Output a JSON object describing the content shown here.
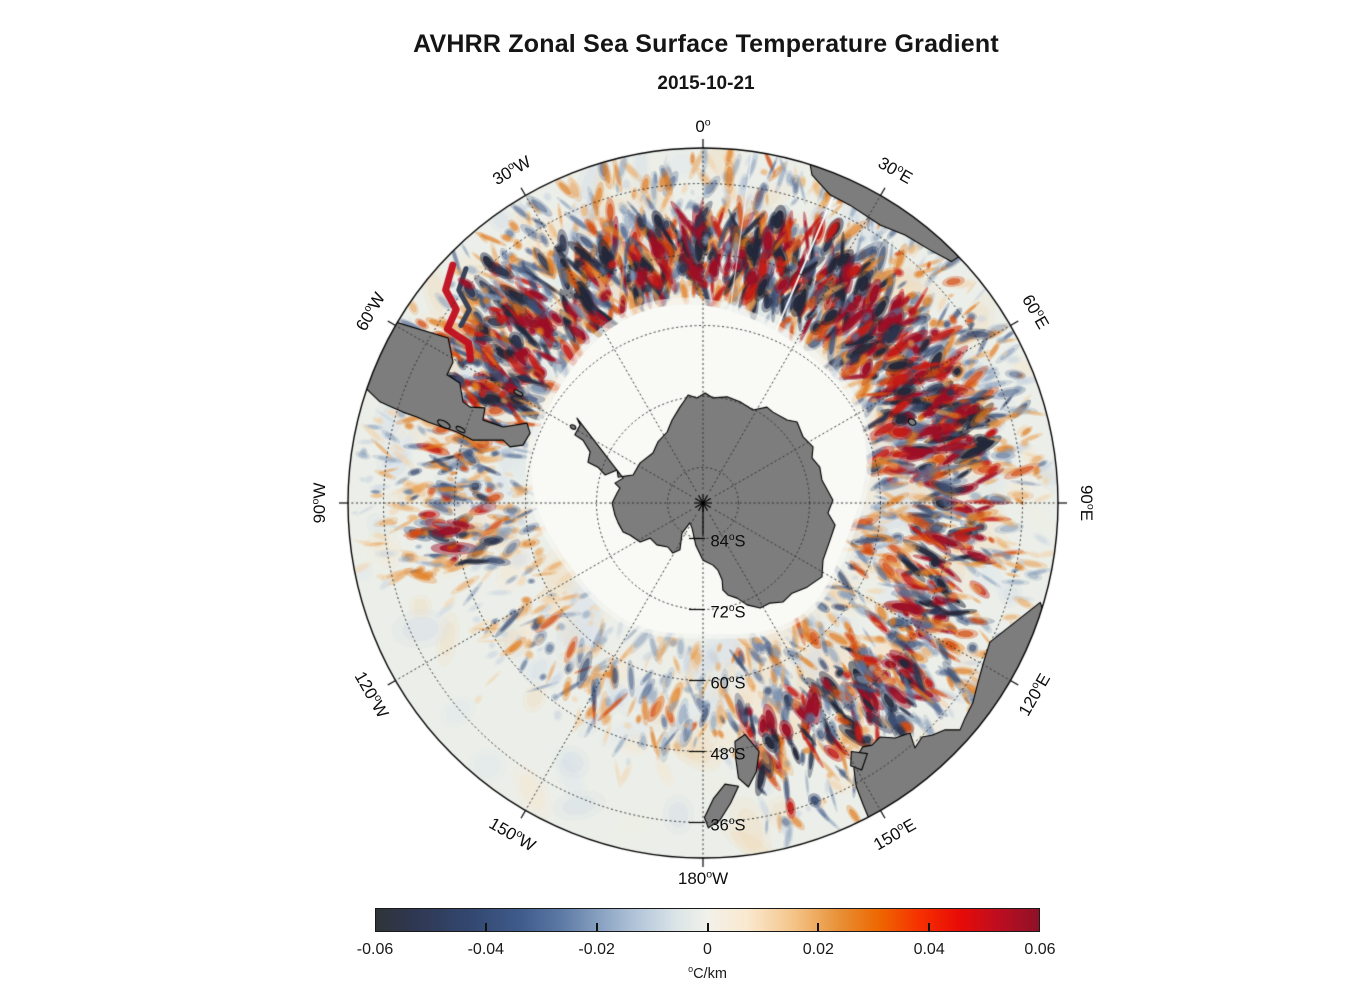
{
  "title": {
    "text": "AVHRR Zonal Sea Surface Temperature Gradient",
    "subtitle": "2015-10-21"
  },
  "map": {
    "longitude_labels": [
      {
        "text": "0°",
        "az": 0
      },
      {
        "text": "30°E",
        "az": 30
      },
      {
        "text": "60°E",
        "az": 60
      },
      {
        "text": "90°E",
        "az": 90
      },
      {
        "text": "120°E",
        "az": 120
      },
      {
        "text": "150°E",
        "az": 150
      },
      {
        "text": "180°W",
        "az": 180
      },
      {
        "text": "150°W",
        "az": 210
      },
      {
        "text": "120°W",
        "az": 240
      },
      {
        "text": "90°W",
        "az": 270
      },
      {
        "text": "60°W",
        "az": 300
      },
      {
        "text": "30°W",
        "az": 330
      }
    ],
    "latitude_labels": [
      {
        "text": "84°S",
        "lat": 84
      },
      {
        "text": "72°S",
        "lat": 72
      },
      {
        "text": "60°S",
        "lat": 60
      },
      {
        "text": "48°S",
        "lat": 48
      },
      {
        "text": "36°S",
        "lat": 36
      }
    ],
    "colors": {
      "ocean": "#ecefe9",
      "ice": "#f9faf6",
      "land": "#7d7d7d",
      "coast": "#000000",
      "grid": "#333333",
      "neg": [
        "#c6d2e0",
        "#8ba0bb",
        "#5a7096",
        "#3c4f74",
        "#2c3550",
        "#23283a"
      ],
      "pos": [
        "#f3d2a8",
        "#eaa55c",
        "#e07a1d",
        "#d44a10",
        "#c31b16",
        "#9c0f26"
      ],
      "mottle": [
        "#f6e3c9",
        "#f3d9b8",
        "#dde6ee",
        "#cfdce8",
        "#eef0e4"
      ]
    },
    "land_regions": [
      {
        "name": "antarctica",
        "points": [
          [
            -0.355,
            -0.239
          ],
          [
            -0.346,
            -0.22
          ],
          [
            -0.361,
            -0.192
          ],
          [
            -0.338,
            -0.177
          ],
          [
            -0.318,
            -0.144
          ],
          [
            -0.324,
            -0.115
          ],
          [
            -0.296,
            -0.101
          ],
          [
            -0.276,
            -0.079
          ],
          [
            -0.242,
            -0.093
          ],
          [
            -0.239,
            -0.073
          ],
          [
            -0.197,
            -0.079
          ],
          [
            -0.177,
            -0.113
          ],
          [
            -0.141,
            -0.141
          ],
          [
            -0.127,
            -0.172
          ],
          [
            -0.101,
            -0.2
          ],
          [
            -0.087,
            -0.234
          ],
          [
            -0.065,
            -0.27
          ],
          [
            -0.051,
            -0.29
          ],
          [
            -0.042,
            -0.304
          ],
          [
            -0.017,
            -0.296
          ],
          [
            0.006,
            -0.31
          ],
          [
            0.028,
            -0.296
          ],
          [
            0.068,
            -0.299
          ],
          [
            0.104,
            -0.285
          ],
          [
            0.141,
            -0.262
          ],
          [
            0.18,
            -0.27
          ],
          [
            0.197,
            -0.256
          ],
          [
            0.237,
            -0.234
          ],
          [
            0.265,
            -0.228
          ],
          [
            0.282,
            -0.186
          ],
          [
            0.31,
            -0.158
          ],
          [
            0.307,
            -0.127
          ],
          [
            0.329,
            -0.101
          ],
          [
            0.335,
            -0.065
          ],
          [
            0.366,
            -0.008
          ],
          [
            0.352,
            0.028
          ],
          [
            0.372,
            0.062
          ],
          [
            0.358,
            0.104
          ],
          [
            0.338,
            0.161
          ],
          [
            0.335,
            0.208
          ],
          [
            0.293,
            0.237
          ],
          [
            0.251,
            0.254
          ],
          [
            0.225,
            0.279
          ],
          [
            0.189,
            0.282
          ],
          [
            0.161,
            0.296
          ],
          [
            0.124,
            0.287
          ],
          [
            0.096,
            0.268
          ],
          [
            0.07,
            0.259
          ],
          [
            0.056,
            0.245
          ],
          [
            0.054,
            0.217
          ],
          [
            0.042,
            0.189
          ],
          [
            0.028,
            0.175
          ],
          [
            0.0,
            0.161
          ],
          [
            -0.02,
            0.12
          ],
          [
            -0.031,
            0.07
          ],
          [
            -0.037,
            0.056
          ],
          [
            -0.059,
            0.085
          ],
          [
            -0.065,
            0.132
          ],
          [
            -0.085,
            0.141
          ],
          [
            -0.099,
            0.124
          ],
          [
            -0.13,
            0.118
          ],
          [
            -0.149,
            0.099
          ],
          [
            -0.177,
            0.11
          ],
          [
            -0.206,
            0.09
          ],
          [
            -0.225,
            0.082
          ],
          [
            -0.239,
            0.056
          ],
          [
            -0.248,
            0.034
          ],
          [
            -0.256,
            0.0
          ],
          [
            -0.242,
            -0.028
          ],
          [
            -0.234,
            -0.042
          ],
          [
            -0.248,
            -0.056
          ],
          [
            -0.225,
            -0.07
          ]
        ]
      },
      {
        "name": "south-america",
        "points": [
          [
            -0.9,
            -0.52
          ],
          [
            -0.718,
            -0.465
          ],
          [
            -0.704,
            -0.397
          ],
          [
            -0.721,
            -0.361
          ],
          [
            -0.685,
            -0.338
          ],
          [
            -0.676,
            -0.285
          ],
          [
            -0.656,
            -0.27
          ],
          [
            -0.614,
            -0.268
          ],
          [
            -0.62,
            -0.234
          ],
          [
            -0.594,
            -0.225
          ],
          [
            -0.563,
            -0.214
          ],
          [
            -0.496,
            -0.225
          ],
          [
            -0.487,
            -0.197
          ],
          [
            -0.507,
            -0.163
          ],
          [
            -0.544,
            -0.158
          ],
          [
            -0.563,
            -0.177
          ],
          [
            -0.648,
            -0.177
          ],
          [
            -0.693,
            -0.2
          ],
          [
            -0.735,
            -0.214
          ],
          [
            -0.775,
            -0.228
          ],
          [
            -0.806,
            -0.242
          ],
          [
            -0.845,
            -0.256
          ],
          [
            -0.876,
            -0.27
          ],
          [
            -0.91,
            -0.285
          ],
          [
            -1.05,
            -0.42
          ]
        ]
      },
      {
        "name": "africa",
        "points": [
          [
            0.28,
            -1.08
          ],
          [
            0.307,
            -0.924
          ],
          [
            0.358,
            -0.868
          ],
          [
            0.414,
            -0.839
          ],
          [
            0.499,
            -0.783
          ],
          [
            0.569,
            -0.755
          ],
          [
            0.639,
            -0.713
          ],
          [
            0.7,
            -0.68
          ],
          [
            0.82,
            -0.76
          ],
          [
            0.52,
            -1.1
          ]
        ]
      },
      {
        "name": "australia",
        "points": [
          [
            0.95,
            0.28
          ],
          [
            0.808,
            0.392
          ],
          [
            0.79,
            0.45
          ],
          [
            0.775,
            0.504
          ],
          [
            0.76,
            0.563
          ],
          [
            0.738,
            0.606
          ],
          [
            0.724,
            0.639
          ],
          [
            0.682,
            0.639
          ],
          [
            0.645,
            0.654
          ],
          [
            0.617,
            0.659
          ],
          [
            0.597,
            0.69
          ],
          [
            0.583,
            0.648
          ],
          [
            0.541,
            0.662
          ],
          [
            0.499,
            0.659
          ],
          [
            0.476,
            0.682
          ],
          [
            0.45,
            0.687
          ],
          [
            0.436,
            0.71
          ],
          [
            0.425,
            0.748
          ],
          [
            0.432,
            0.8
          ],
          [
            0.452,
            0.852
          ],
          [
            0.472,
            0.9
          ],
          [
            0.56,
            1.08
          ],
          [
            1.15,
            0.85
          ]
        ]
      },
      {
        "name": "tasmania",
        "points": [
          [
            0.418,
            0.7
          ],
          [
            0.463,
            0.706
          ],
          [
            0.447,
            0.752
          ],
          [
            0.416,
            0.74
          ]
        ]
      },
      {
        "name": "new-zealand-north-island",
        "points": [
          [
            0.118,
            0.652
          ],
          [
            0.158,
            0.7
          ],
          [
            0.15,
            0.758
          ],
          [
            0.128,
            0.8
          ],
          [
            0.1,
            0.775
          ],
          [
            0.092,
            0.718
          ],
          [
            0.09,
            0.672
          ]
        ]
      },
      {
        "name": "new-zealand-south-island",
        "points": [
          [
            0.1,
            0.798
          ],
          [
            0.078,
            0.845
          ],
          [
            0.048,
            0.893
          ],
          [
            0.015,
            0.915
          ],
          [
            0.004,
            0.886
          ],
          [
            0.03,
            0.832
          ],
          [
            0.062,
            0.792
          ]
        ]
      }
    ],
    "islands": [
      [
        -0.52,
        -0.31,
        5,
        2
      ],
      [
        -0.73,
        -0.222,
        7,
        3
      ],
      [
        -0.683,
        -0.207,
        5,
        2
      ],
      [
        0.589,
        -0.228,
        4,
        3
      ],
      [
        -0.366,
        -0.214,
        3,
        2
      ]
    ]
  },
  "colorbar": {
    "tick_labels": [
      "-0.06",
      "-0.04",
      "-0.02",
      "0",
      "0.02",
      "0.04",
      "0.06"
    ],
    "tick_values": [
      -0.06,
      -0.04,
      -0.02,
      0,
      0.02,
      0.04,
      0.06
    ],
    "unit": "°C/km",
    "gradient": [
      [
        0,
        "#30333a"
      ],
      [
        0.06,
        "#2f3852"
      ],
      [
        0.14,
        "#32476f"
      ],
      [
        0.22,
        "#3f5c8c"
      ],
      [
        0.28,
        "#5d7aa6"
      ],
      [
        0.34,
        "#8aa3c2"
      ],
      [
        0.4,
        "#b8c9dc"
      ],
      [
        0.45,
        "#d9e3e7"
      ],
      [
        0.5,
        "#f2f1ea"
      ],
      [
        0.56,
        "#f9e9cf"
      ],
      [
        0.63,
        "#f4c488"
      ],
      [
        0.7,
        "#e88f35"
      ],
      [
        0.76,
        "#ee6600"
      ],
      [
        0.82,
        "#f63000"
      ],
      [
        0.88,
        "#e80b07"
      ],
      [
        0.94,
        "#bc0e20"
      ],
      [
        1,
        "#8e1127"
      ]
    ]
  },
  "chart_data": {
    "type": "heatmap",
    "title": "AVHRR Zonal Sea Surface Temperature Gradient",
    "subtitle": "2015-10-21",
    "variable": "zonal sea surface temperature gradient",
    "units": "°C/km",
    "projection": "south-polar azimuthal view centered on 90°S, outer boundary near 30°S",
    "value_range": [
      -0.06,
      0.06
    ],
    "colorbar_ticks": [
      -0.06,
      -0.04,
      -0.02,
      0,
      0.02,
      0.04,
      0.06
    ],
    "colorbar_orientation": "horizontal-bottom",
    "latitude_rings_deg_S": [
      84,
      72,
      60,
      48,
      36
    ],
    "longitude_spokes": [
      "0°",
      "30°E",
      "60°E",
      "90°E",
      "120°E",
      "150°E",
      "180°W",
      "150°W",
      "120°W",
      "90°W",
      "60°W",
      "30°W"
    ],
    "grid": "dotted graticule, 12° latitude rings, 30° longitude spokes",
    "land_mask": [
      "Antarctica",
      "southern South America",
      "southern Africa",
      "Australia",
      "Tasmania",
      "New Zealand",
      "Falkland Islands",
      "South Georgia",
      "Kerguelen"
    ],
    "qualitative_field": [
      {
        "region": "Agulhas Return Current 10–80°E, 38–55°S",
        "amplitude": "very strong alternating ±0.04–0.06"
      },
      {
        "region": "Kerguelen / ACC front chain ~30–70°E",
        "amplitude": "strong paired red–blue eddies"
      },
      {
        "region": "Brazil–Malvinas Confluence ~50–60°W near 38–48°S",
        "amplitude": "very strong red filament with dark blue companion"
      },
      {
        "region": "South of Australia / Tasman Sea",
        "amplitude": "moderate–strong"
      },
      {
        "region": "South Pacific 150°W–90°W",
        "amplitude": "weak, pale mottling"
      },
      {
        "region": "Antarctic sea-ice zone poleward of ~60–66°S",
        "amplitude": "no data (white)"
      },
      {
        "region": "continents",
        "amplitude": "masked gray"
      }
    ]
  }
}
